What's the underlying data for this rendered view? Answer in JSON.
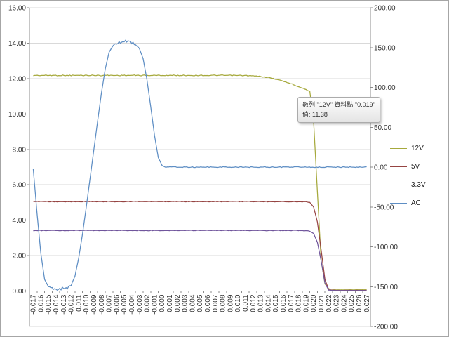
{
  "chart": {
    "background": "#FFFFFF",
    "border_color": "#A6A6A6",
    "grid_color": "#D9D9D9",
    "axis_color": "#8C8C8C",
    "text_color": "#303030"
  },
  "tooltip": {
    "line1": "數列 \"12V\" 資料點 \"0.019\"",
    "line2": "值: 11.38"
  },
  "chart_data": {
    "type": "line",
    "title": "",
    "grid": true,
    "legend_position": "right",
    "x_axis": {
      "categories": [
        "-0.017",
        "-0.016",
        "-0.015",
        "-0.014",
        "-0.013",
        "-0.012",
        "-0.011",
        "-0.010",
        "-0.009",
        "-0.008",
        "-0.007",
        "-0.006",
        "-0.005",
        "-0.004",
        "-0.003",
        "-0.002",
        "-0.001",
        "0.000",
        "0.001",
        "0.002",
        "0.003",
        "0.004",
        "0.005",
        "0.006",
        "0.007",
        "0.008",
        "0.009",
        "0.010",
        "0.011",
        "0.012",
        "0.013",
        "0.014",
        "0.015",
        "0.016",
        "0.017",
        "0.018",
        "0.019",
        "0.020",
        "0.021",
        "0.022",
        "0.023",
        "0.024",
        "0.025",
        "0.026",
        "0.027"
      ]
    },
    "y_axis_left": {
      "min": -2,
      "max": 16,
      "tick_values": [
        16,
        14,
        12,
        10,
        8,
        6,
        4,
        2,
        0
      ],
      "tick_labels": [
        "16.00",
        "14.00",
        "12.00",
        "10.00",
        "8.00",
        "6.00",
        "4.00",
        "2.00",
        "0.00"
      ]
    },
    "y_axis_right": {
      "min": -200,
      "max": 200,
      "tick_values": [
        200,
        150,
        100,
        50,
        0,
        -50,
        -100,
        -150,
        -200
      ],
      "tick_labels": [
        "200.00",
        "150.00",
        "100.00",
        "50.00",
        "0.00",
        "-50.00",
        "-100.00",
        "-150.00",
        "-200.00"
      ]
    },
    "series": [
      {
        "name": "12V",
        "axis": "left",
        "color": "#A6A93C",
        "noise": 0.05,
        "points": [
          [
            -0.017,
            12.18
          ],
          [
            0.008,
            12.18
          ],
          [
            0.011,
            12.17
          ],
          [
            0.012,
            12.15
          ],
          [
            0.013,
            12.12
          ],
          [
            0.014,
            12.06
          ],
          [
            0.015,
            11.97
          ],
          [
            0.016,
            11.85
          ],
          [
            0.017,
            11.71
          ],
          [
            0.018,
            11.55
          ],
          [
            0.019,
            11.38
          ],
          [
            0.0195,
            11.27
          ],
          [
            0.02,
            9.6
          ],
          [
            0.0205,
            5.6
          ],
          [
            0.021,
            1.7
          ],
          [
            0.0215,
            0.4
          ],
          [
            0.022,
            0.13
          ],
          [
            0.023,
            0.1
          ],
          [
            0.027,
            0.09
          ]
        ]
      },
      {
        "name": "5V",
        "axis": "left",
        "color": "#964442",
        "noise": 0.035,
        "points": [
          [
            -0.017,
            5.05
          ],
          [
            0.018,
            5.05
          ],
          [
            0.019,
            5.04
          ],
          [
            0.0195,
            5.0
          ],
          [
            0.02,
            4.75
          ],
          [
            0.0205,
            3.9
          ],
          [
            0.021,
            2.3
          ],
          [
            0.0215,
            0.65
          ],
          [
            0.022,
            0.07
          ],
          [
            0.023,
            0.04
          ],
          [
            0.027,
            0.04
          ]
        ]
      },
      {
        "name": "3.3V",
        "axis": "left",
        "color": "#70559C",
        "noise": 0.03,
        "points": [
          [
            -0.017,
            3.42
          ],
          [
            0.018,
            3.42
          ],
          [
            0.019,
            3.41
          ],
          [
            0.0195,
            3.38
          ],
          [
            0.02,
            3.25
          ],
          [
            0.0205,
            2.75
          ],
          [
            0.021,
            1.7
          ],
          [
            0.0215,
            0.45
          ],
          [
            0.022,
            0.05
          ],
          [
            0.023,
            0.03
          ],
          [
            0.027,
            0.03
          ]
        ]
      },
      {
        "name": "AC",
        "axis": "right",
        "color": "#5E8EC4",
        "noise": 4.5,
        "points": [
          [
            -0.017,
            -2
          ],
          [
            -0.0165,
            -58
          ],
          [
            -0.016,
            -108
          ],
          [
            -0.0155,
            -141
          ],
          [
            -0.015,
            -150
          ],
          [
            -0.0145,
            -152
          ],
          [
            -0.014,
            -153
          ],
          [
            -0.0135,
            -153
          ],
          [
            -0.013,
            -152
          ],
          [
            -0.0125,
            -151
          ],
          [
            -0.012,
            -148
          ],
          [
            -0.0115,
            -137
          ],
          [
            -0.011,
            -114
          ],
          [
            -0.0105,
            -84
          ],
          [
            -0.01,
            -50
          ],
          [
            -0.0095,
            -14
          ],
          [
            -0.009,
            22
          ],
          [
            -0.0085,
            58
          ],
          [
            -0.008,
            93
          ],
          [
            -0.0075,
            123
          ],
          [
            -0.007,
            144
          ],
          [
            -0.0065,
            152
          ],
          [
            -0.006,
            155
          ],
          [
            -0.0055,
            156
          ],
          [
            -0.005,
            157
          ],
          [
            -0.0045,
            157
          ],
          [
            -0.004,
            156
          ],
          [
            -0.0035,
            154
          ],
          [
            -0.003,
            149
          ],
          [
            -0.0025,
            136
          ],
          [
            -0.002,
            110
          ],
          [
            -0.0015,
            76
          ],
          [
            -0.001,
            40
          ],
          [
            -0.0005,
            12
          ],
          [
            0,
            2
          ],
          [
            0.0005,
            0
          ],
          [
            0.027,
            0
          ]
        ]
      }
    ]
  }
}
